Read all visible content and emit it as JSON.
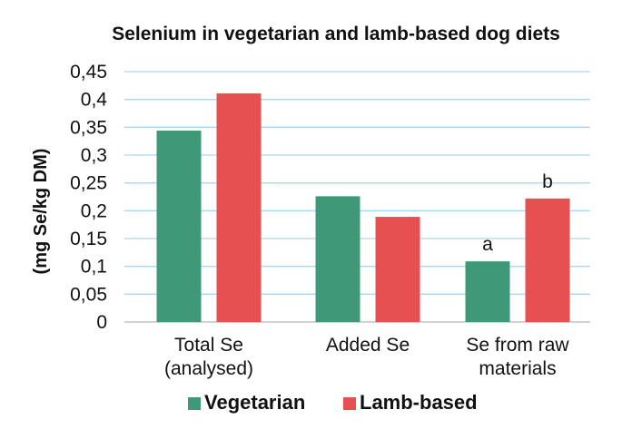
{
  "chart_data": {
    "type": "bar",
    "title": "Selenium in vegetarian and lamb-based dog diets",
    "xlabel": "",
    "ylabel": "(mg Se/kg DM)",
    "ylim": [
      0,
      0.45
    ],
    "y_ticks": [
      0,
      0.05,
      0.1,
      0.15,
      0.2,
      0.25,
      0.3,
      0.35,
      0.4,
      0.45
    ],
    "y_tick_labels": [
      "0",
      "0,05",
      "0,1",
      "0,15",
      "0,2",
      "0,25",
      "0,3",
      "0,35",
      "0,4",
      "0,45"
    ],
    "categories": [
      [
        "Total Se",
        "(analysed)"
      ],
      [
        "Added Se"
      ],
      [
        "Se from raw",
        "materials"
      ]
    ],
    "series": [
      {
        "name": "Vegetarian",
        "color": "#3f9877",
        "values": [
          0.344,
          0.226,
          0.109
        ]
      },
      {
        "name": "Lamb-based",
        "color": "#e65050",
        "values": [
          0.411,
          0.189,
          0.222
        ]
      }
    ],
    "annotations": [
      {
        "category_index": 2,
        "series_index": 0,
        "text": "a"
      },
      {
        "category_index": 2,
        "series_index": 1,
        "text": "b"
      }
    ],
    "grid": true,
    "legend_position": "bottom"
  }
}
